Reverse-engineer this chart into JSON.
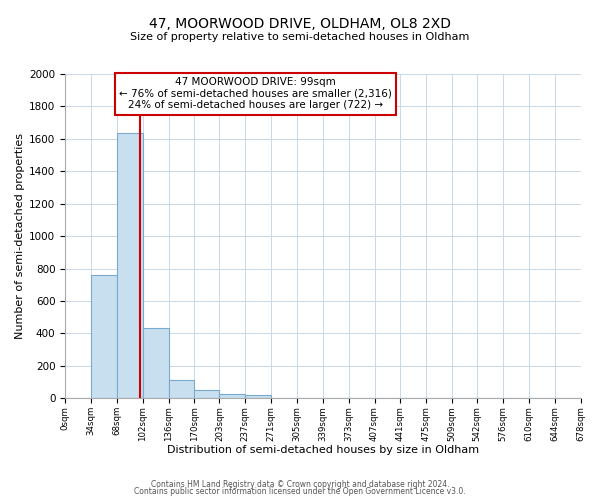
{
  "title": "47, MOORWOOD DRIVE, OLDHAM, OL8 2XD",
  "subtitle": "Size of property relative to semi-detached houses in Oldham",
  "xlabel": "Distribution of semi-detached houses by size in Oldham",
  "ylabel": "Number of semi-detached properties",
  "bar_edges": [
    0,
    34,
    68,
    102,
    136,
    170,
    203,
    237,
    271,
    305,
    339,
    373,
    407,
    441,
    475,
    509,
    542,
    576,
    610,
    644,
    678
  ],
  "bar_heights": [
    0,
    760,
    1635,
    435,
    110,
    50,
    25,
    20,
    0,
    0,
    0,
    0,
    0,
    0,
    0,
    0,
    0,
    0,
    0,
    0
  ],
  "bar_color": "#c8dff0",
  "bar_edge_color": "#7aabcf",
  "property_line_x": 99,
  "property_line_color": "#cc0000",
  "annotation_title": "47 MOORWOOD DRIVE: 99sqm",
  "annotation_line1": "← 76% of semi-detached houses are smaller (2,316)",
  "annotation_line2": "24% of semi-detached houses are larger (722) →",
  "ylim": [
    0,
    2000
  ],
  "xlim": [
    0,
    678
  ],
  "tick_labels": [
    "0sqm",
    "34sqm",
    "68sqm",
    "102sqm",
    "136sqm",
    "170sqm",
    "203sqm",
    "237sqm",
    "271sqm",
    "305sqm",
    "339sqm",
    "373sqm",
    "407sqm",
    "441sqm",
    "475sqm",
    "509sqm",
    "542sqm",
    "576sqm",
    "610sqm",
    "644sqm",
    "678sqm"
  ],
  "footer1": "Contains HM Land Registry data © Crown copyright and database right 2024.",
  "footer2": "Contains public sector information licensed under the Open Government Licence v3.0.",
  "background_color": "#ffffff",
  "grid_color": "#c8d8e8",
  "title_fontsize": 10,
  "subtitle_fontsize": 8
}
